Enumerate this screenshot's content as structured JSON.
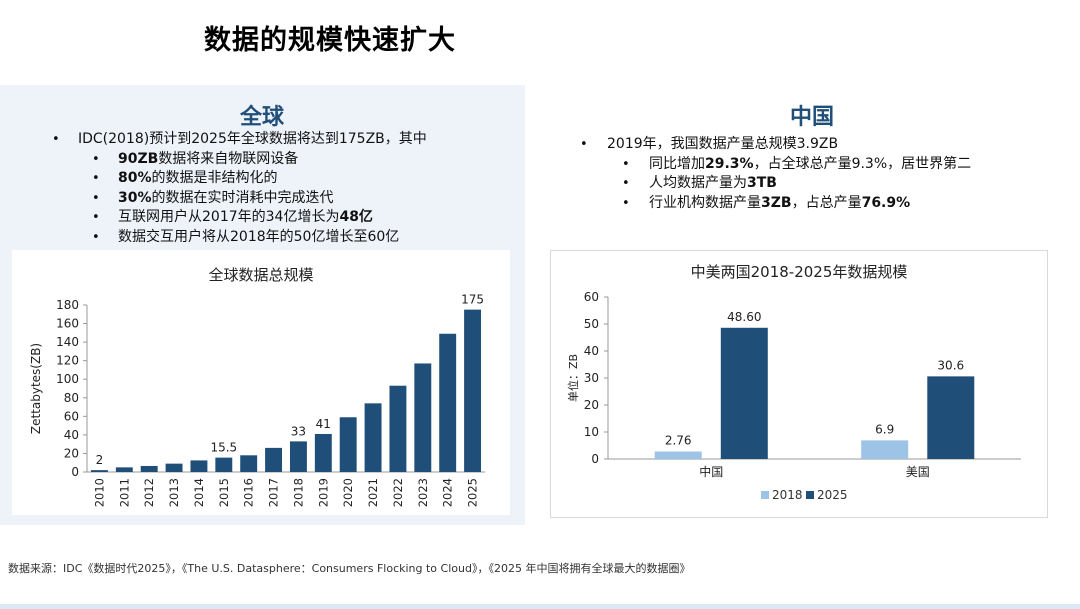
{
  "page": {
    "title": "数据的规模快速扩大"
  },
  "global": {
    "heading": "全球",
    "bullets": [
      {
        "level": 1,
        "parts": [
          {
            "text": "IDC(2018)预计到2025年全球数据将达到175ZB，其中"
          }
        ]
      },
      {
        "level": 2,
        "parts": [
          {
            "text": "90ZB",
            "bold": true
          },
          {
            "text": "数据将来自物联网设备"
          }
        ]
      },
      {
        "level": 2,
        "parts": [
          {
            "text": "80%",
            "bold": true
          },
          {
            "text": "的数据是非结构化的"
          }
        ]
      },
      {
        "level": 2,
        "parts": [
          {
            "text": "30%",
            "bold": true
          },
          {
            "text": "的数据在实时消耗中完成迭代"
          }
        ]
      },
      {
        "level": 2,
        "parts": [
          {
            "text": "互联网用户从2017年的34亿增长为"
          },
          {
            "text": "48亿",
            "bold": true
          }
        ]
      },
      {
        "level": 2,
        "parts": [
          {
            "text": "数据交互用户将从2018年的50亿增长至60亿"
          }
        ]
      }
    ]
  },
  "china": {
    "heading": "中国",
    "bullets": [
      {
        "level": 1,
        "parts": [
          {
            "text": "2019年，我国数据产量总规模3.9ZB"
          }
        ]
      },
      {
        "level": 2,
        "parts": [
          {
            "text": "同比增加"
          },
          {
            "text": "29.3%",
            "bold": true
          },
          {
            "text": "，占全球总产量9.3%，居世界第二"
          }
        ]
      },
      {
        "level": 2,
        "parts": [
          {
            "text": "人均数据产量为"
          },
          {
            "text": "3TB",
            "bold": true
          }
        ]
      },
      {
        "level": 2,
        "parts": [
          {
            "text": "行业机构数据产量"
          },
          {
            "text": "3ZB",
            "bold": true
          },
          {
            "text": "，占总产量"
          },
          {
            "text": "76.9%",
            "bold": true
          }
        ]
      }
    ]
  },
  "chart_data": [
    {
      "type": "bar",
      "title": "全球数据总规模",
      "xlabel": "",
      "ylabel": "Zettabytes(ZB)",
      "ylim": [
        0,
        180
      ],
      "yticks": [
        0,
        20,
        40,
        60,
        80,
        100,
        120,
        140,
        160,
        180
      ],
      "categories": [
        "2010",
        "2011",
        "2012",
        "2013",
        "2014",
        "2015",
        "2016",
        "2017",
        "2018",
        "2019",
        "2020",
        "2021",
        "2022",
        "2023",
        "2024",
        "2025"
      ],
      "values": [
        2,
        5,
        6.5,
        9,
        12.5,
        15.5,
        18,
        26,
        33,
        41,
        59,
        74,
        93,
        117,
        149,
        175
      ],
      "data_labels": {
        "2010": "2",
        "2015": "15.5",
        "2018": "33",
        "2019": "41",
        "2025": "175"
      },
      "grid": false,
      "color": "#1f4e79"
    },
    {
      "type": "bar",
      "title": "中美两国2018-2025年数据规模",
      "xlabel": "",
      "ylabel": "单位：ZB",
      "ylim": [
        0,
        60
      ],
      "yticks": [
        0,
        10,
        20,
        30,
        40,
        50,
        60
      ],
      "categories": [
        "中国",
        "美国"
      ],
      "series": [
        {
          "name": "2018",
          "values": [
            2.76,
            6.9
          ],
          "labels": [
            "2.76",
            "6.9"
          ],
          "color": "#9dc3e6"
        },
        {
          "name": "2025",
          "values": [
            48.6,
            30.6
          ],
          "labels": [
            "48.60",
            "30.6"
          ],
          "color": "#1f4e79"
        }
      ],
      "legend": "bottom",
      "grid": false
    }
  ],
  "footer": {
    "source": "数据来源：IDC《数据时代2025》，《The U.S. Datasphere：Consumers Flocking to Cloud》，《2025 年中国将拥有全球最大的数据圈》"
  }
}
